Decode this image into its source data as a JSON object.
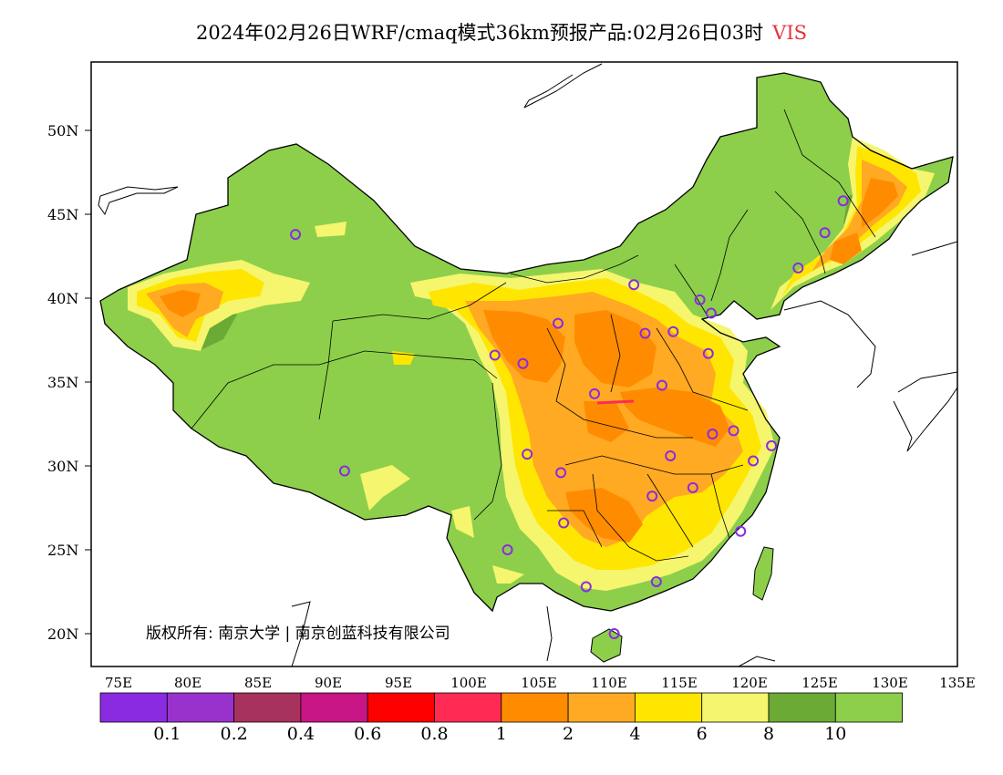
{
  "title": {
    "main": "2024年02月26日WRF/cmaq模式36km预报产品:02月26日03时",
    "variable": "VIS"
  },
  "copyright": "版权所有: 南京大学 | 南京创蓝科技有限公司",
  "axes": {
    "lat_labels": [
      "50N",
      "45N",
      "40N",
      "35N",
      "30N",
      "25N",
      "20N"
    ],
    "lon_labels": [
      "75E",
      "80E",
      "85E",
      "90E",
      "95E",
      "100E",
      "105E",
      "110E",
      "115E",
      "120E",
      "125E",
      "130E",
      "135E"
    ]
  },
  "colorbar": {
    "colors": [
      "#8a2be2",
      "#9932cc",
      "#a8325e",
      "#c71585",
      "#ff0000",
      "#ff2b55",
      "#ff8c00",
      "#ffaa22",
      "#ffe600",
      "#f5f56e",
      "#6aaa35",
      "#8dcf4a"
    ],
    "labels": [
      "0.1",
      "0.2",
      "0.4",
      "0.6",
      "0.8",
      "1",
      "2",
      "4",
      "6",
      "8",
      "10"
    ]
  },
  "stations": [
    {
      "lon": 87.6,
      "lat": 43.8
    },
    {
      "lon": 91.1,
      "lat": 29.7
    },
    {
      "lon": 101.8,
      "lat": 36.6
    },
    {
      "lon": 103.8,
      "lat": 36.1
    },
    {
      "lon": 106.3,
      "lat": 38.5
    },
    {
      "lon": 111.7,
      "lat": 40.8
    },
    {
      "lon": 112.5,
      "lat": 37.9
    },
    {
      "lon": 114.5,
      "lat": 38.0
    },
    {
      "lon": 116.4,
      "lat": 39.9
    },
    {
      "lon": 117.2,
      "lat": 39.1
    },
    {
      "lon": 117.0,
      "lat": 36.7
    },
    {
      "lon": 113.7,
      "lat": 34.8
    },
    {
      "lon": 108.9,
      "lat": 34.3
    },
    {
      "lon": 117.3,
      "lat": 31.9
    },
    {
      "lon": 118.8,
      "lat": 32.1
    },
    {
      "lon": 121.5,
      "lat": 31.2
    },
    {
      "lon": 120.2,
      "lat": 30.3
    },
    {
      "lon": 114.3,
      "lat": 30.6
    },
    {
      "lon": 115.9,
      "lat": 28.7
    },
    {
      "lon": 113.0,
      "lat": 28.2
    },
    {
      "lon": 106.5,
      "lat": 29.6
    },
    {
      "lon": 104.1,
      "lat": 30.7
    },
    {
      "lon": 106.7,
      "lat": 26.6
    },
    {
      "lon": 102.7,
      "lat": 25.0
    },
    {
      "lon": 108.3,
      "lat": 22.8
    },
    {
      "lon": 113.3,
      "lat": 23.1
    },
    {
      "lon": 119.3,
      "lat": 26.1
    },
    {
      "lon": 110.3,
      "lat": 20.0
    },
    {
      "lon": 123.4,
      "lat": 41.8
    },
    {
      "lon": 125.3,
      "lat": 43.9
    },
    {
      "lon": 126.6,
      "lat": 45.8
    }
  ]
}
